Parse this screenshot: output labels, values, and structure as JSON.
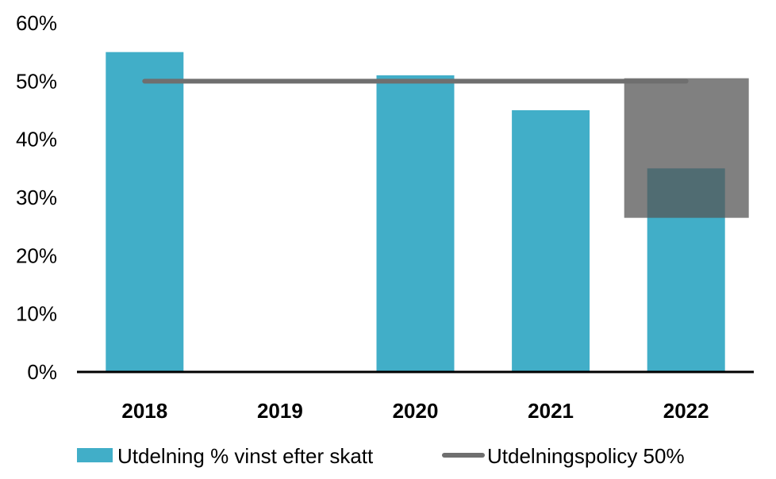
{
  "chart_data": {
    "type": "bar",
    "categories": [
      "2018",
      "2019",
      "2020",
      "2021",
      "2022"
    ],
    "series": [
      {
        "name": "Utdelning % vinst efter skatt",
        "type": "bar",
        "values": [
          55,
          null,
          51,
          45,
          35
        ],
        "color": "#41aec8"
      },
      {
        "name": "Utdelningspolicy 50%",
        "type": "line",
        "values": [
          50,
          50,
          50,
          50,
          50
        ],
        "color": "#6f6f6f"
      }
    ],
    "ylim": [
      0,
      60
    ],
    "yticks": [
      "0%",
      "10%",
      "20%",
      "30%",
      "40%",
      "50%",
      "60%"
    ],
    "grid": false,
    "legend_position": "bottom",
    "overlay_box": {
      "category": "2022",
      "y_from": 26.5,
      "y_to": 50.5,
      "color": "#555555",
      "opacity": 0.75
    }
  }
}
